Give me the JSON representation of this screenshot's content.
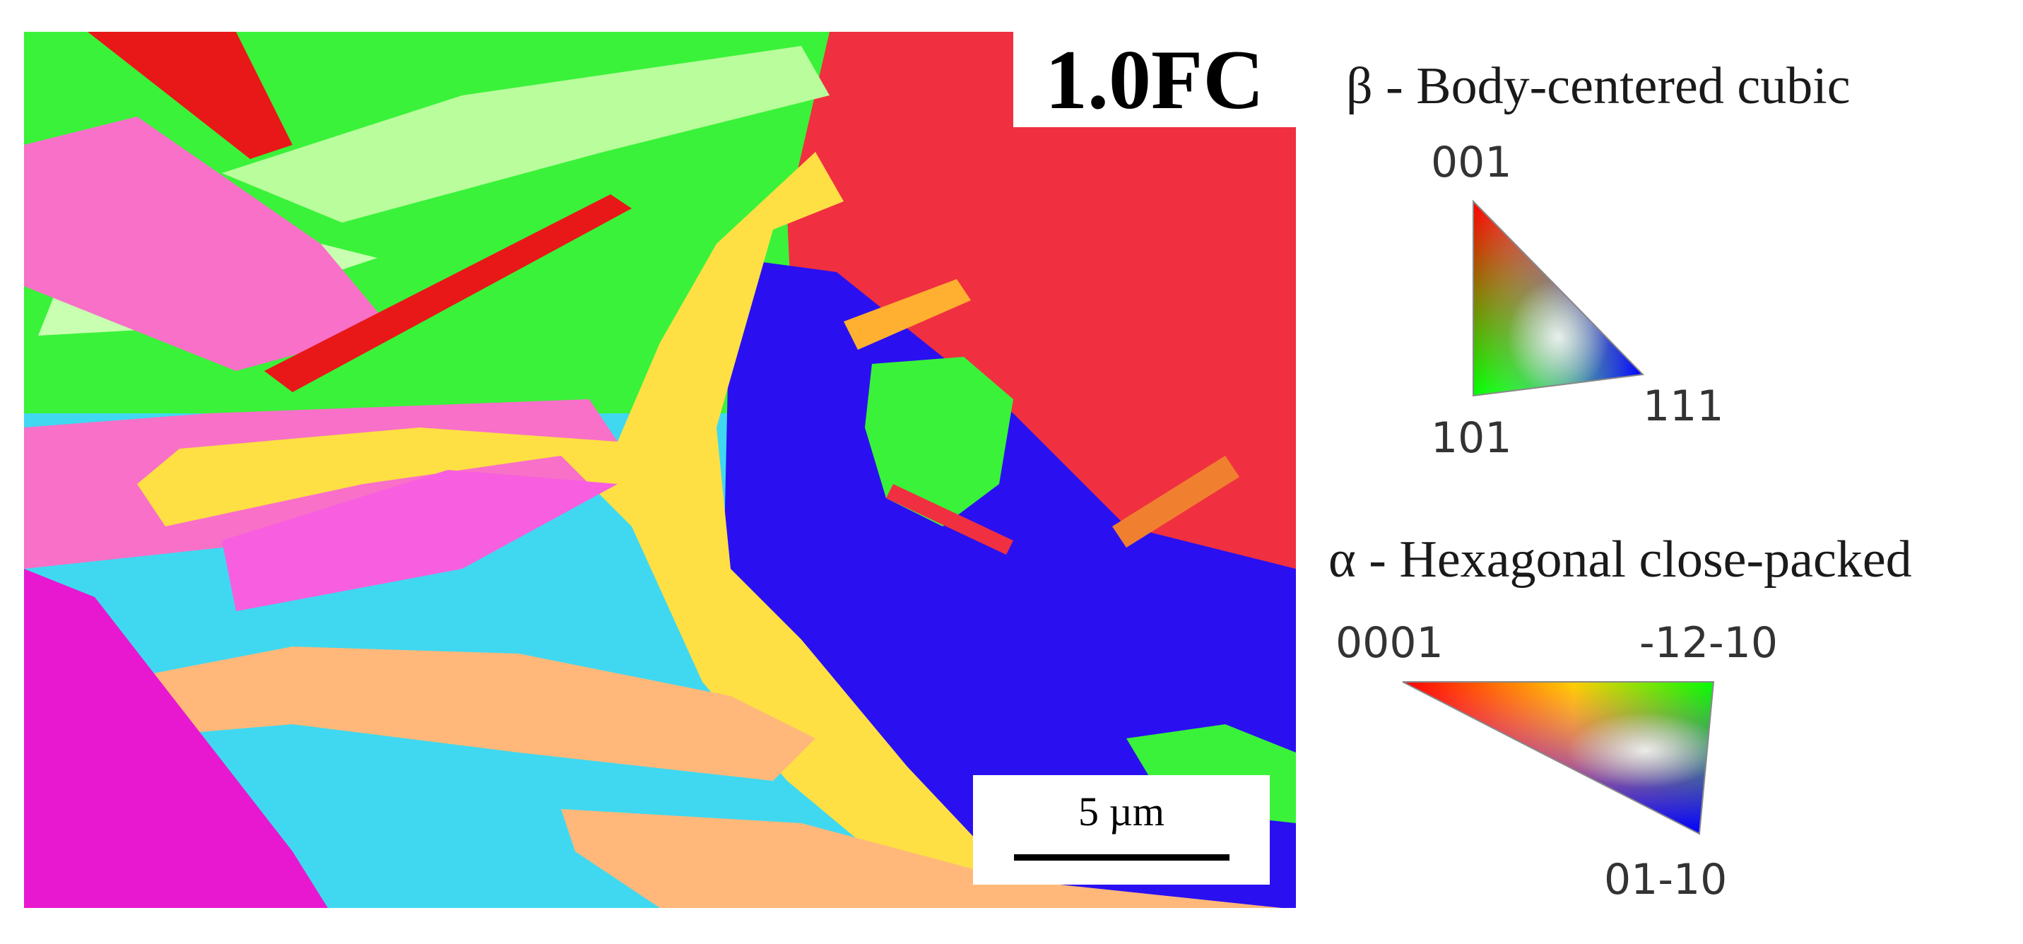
{
  "figure": {
    "sample_label": "1.0FC",
    "scale_bar_label": "5 µm"
  },
  "legend": {
    "beta": {
      "title": "β - Body-centered cubic",
      "poles": [
        "001",
        "101",
        "111"
      ],
      "colors": [
        "#ff0000",
        "#00ff00",
        "#0000ff"
      ]
    },
    "alpha": {
      "title": "α - Hexagonal close-packed",
      "poles": [
        "0001",
        "-12-10",
        "01-10"
      ],
      "colors": [
        "#ff0000",
        "#00ff00",
        "#0000ff"
      ]
    }
  },
  "map_colors": {
    "red": "#f03040",
    "green": "#3af23a",
    "light_green": "#b9fd9c",
    "yellow": "#fee044",
    "blue": "#2a10f0",
    "magenta": "#f85ee0",
    "cyan": "#40d8f0",
    "orange": "#ffb87a",
    "pink": "#f870c8"
  }
}
